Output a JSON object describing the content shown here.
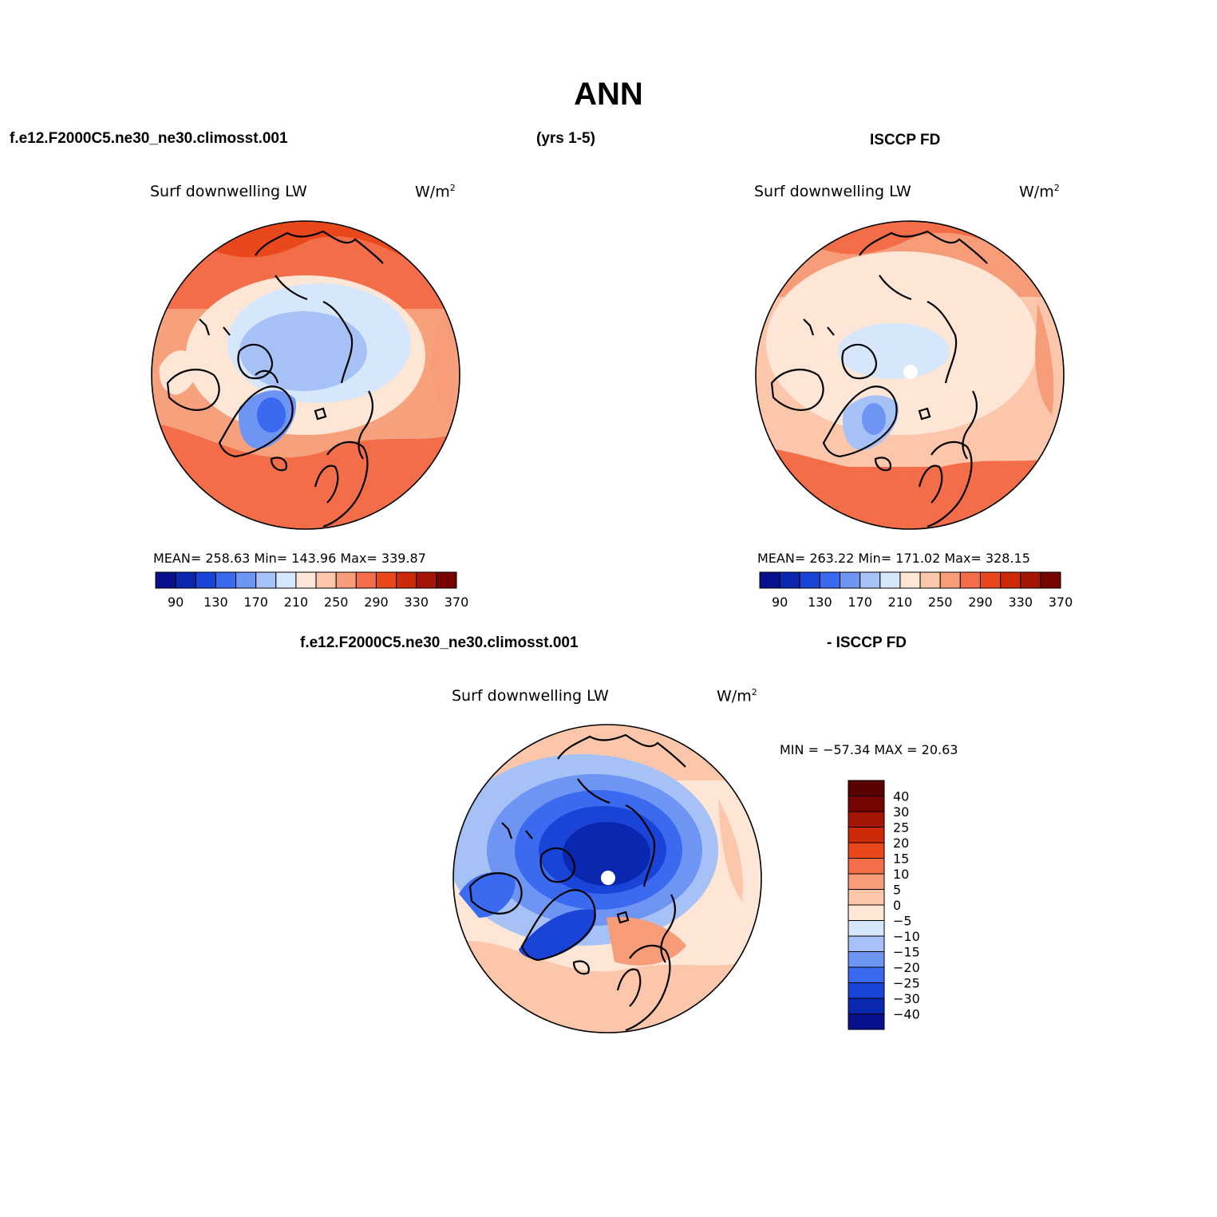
{
  "page": {
    "title": "ANN",
    "case_name": "f.e12.F2000C5.ne30_ne30.climosst.001",
    "years": "(yrs 1-5)",
    "obs_name": "ISCCP FD",
    "diff_case": "f.e12.F2000C5.ne30_ne30.climosst.001",
    "diff_obs": "- ISCCP FD"
  },
  "panels": {
    "model": {
      "title": "Surf downwelling LW",
      "units_base": "W/m",
      "units_exp": "2",
      "stats": "MEAN= 258.63   Min= 143.96   Max= 339.87"
    },
    "obs": {
      "title": "Surf downwelling LW",
      "units_base": "W/m",
      "units_exp": "2",
      "stats": "MEAN= 263.22   Min= 171.02   Max= 328.15"
    },
    "diff": {
      "title": "Surf downwelling LW",
      "units_base": "W/m",
      "units_exp": "2",
      "stats": "MIN = −57.34  MAX =   20.63"
    }
  },
  "colorbar_main": {
    "colors": [
      "#08108c",
      "#0a27b0",
      "#1a44d8",
      "#3a6af0",
      "#6f95f4",
      "#a6c1f5",
      "#d6e6fb",
      "#fde6d6",
      "#fbc6aa",
      "#f79c78",
      "#f26d48",
      "#e8481c",
      "#cc2a08",
      "#a41505",
      "#760401"
    ],
    "labels": [
      "90",
      "130",
      "170",
      "210",
      "250",
      "290",
      "330",
      "370"
    ]
  },
  "colorbar_diff": {
    "colors": [
      "#08108c",
      "#0a27b0",
      "#1a44d8",
      "#3a6af0",
      "#6f95f4",
      "#a6c1f5",
      "#d6e6fb",
      "#fde6d6",
      "#fbc6aa",
      "#f79c78",
      "#f26d48",
      "#e8481c",
      "#cc2a08",
      "#a41505",
      "#760401",
      "#5a0000"
    ],
    "labels": [
      "40",
      "30",
      "25",
      "20",
      "15",
      "10",
      "5",
      "0",
      "−5",
      "−10",
      "−15",
      "−20",
      "−25",
      "−30",
      "−40"
    ]
  }
}
